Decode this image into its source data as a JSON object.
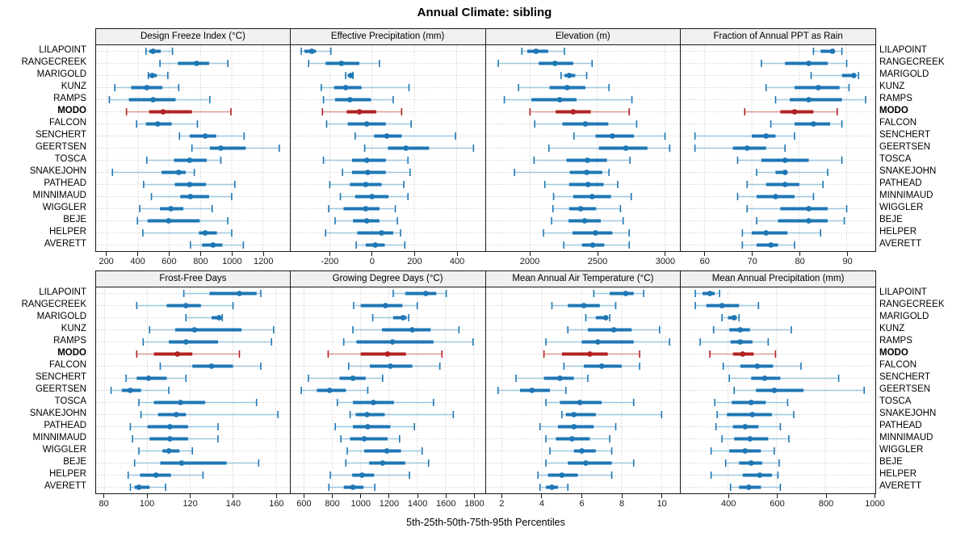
{
  "title": "Annual Climate: sibling",
  "footer": "5th-25th-50th-75th-95th Percentiles",
  "colors": {
    "blue": "#1f77b4",
    "blue_light": "#9ec7e0",
    "red": "#b22222",
    "red_light": "#dc9a90",
    "grid": "#c8c8c8",
    "border": "#1a1a1a",
    "header_bg": "#f0f0f0"
  },
  "chart_data": {
    "type": "errorbar-grid",
    "title": "Annual Climate: sibling",
    "footer_xlabel": "5th-25th-50th-75th-95th Percentiles",
    "percentiles": [
      "5th",
      "25th",
      "50th",
      "75th",
      "95th"
    ],
    "stations": [
      "LILAPOINT",
      "RANGECREEK",
      "MARIGOLD",
      "KUNZ",
      "RAMPS",
      "MODO",
      "FALCON",
      "SENCHERT",
      "GEERTSEN",
      "TOSCA",
      "SNAKEJOHN",
      "PATHEAD",
      "MINNIMAUD",
      "WIGGLER",
      "BEJE",
      "HELPER",
      "AVERETT"
    ],
    "highlight_station": "MODO",
    "panels": [
      {
        "title": "Design Freeze Index (°C)",
        "grid_row": 0,
        "grid_col": 0,
        "xlim": [
          130,
          1372
        ],
        "ticks": [
          200,
          400,
          600,
          800,
          1000,
          1200
        ],
        "values": [
          [
            450,
            470,
            495,
            545,
            620
          ],
          [
            540,
            655,
            775,
            855,
            975
          ],
          [
            465,
            470,
            490,
            520,
            590
          ],
          [
            250,
            355,
            455,
            555,
            660
          ],
          [
            215,
            340,
            495,
            640,
            860
          ],
          [
            325,
            470,
            560,
            745,
            995
          ],
          [
            390,
            450,
            525,
            615,
            780
          ],
          [
            665,
            730,
            830,
            900,
            1080
          ],
          [
            745,
            860,
            930,
            1090,
            1305
          ],
          [
            455,
            630,
            730,
            840,
            930
          ],
          [
            235,
            550,
            660,
            705,
            760
          ],
          [
            435,
            635,
            730,
            835,
            1020
          ],
          [
            485,
            670,
            735,
            855,
            1000
          ],
          [
            410,
            540,
            610,
            690,
            875
          ],
          [
            395,
            460,
            595,
            795,
            975
          ],
          [
            430,
            790,
            830,
            905,
            1000
          ],
          [
            735,
            810,
            880,
            940,
            1075
          ]
        ]
      },
      {
        "title": "Effective Precipitation (mm)",
        "grid_row": 0,
        "grid_col": 1,
        "xlim": [
          -385,
          535
        ],
        "ticks": [
          -200,
          0,
          200,
          400
        ],
        "values": [
          [
            -335,
            -320,
            -285,
            -265,
            -195
          ],
          [
            -300,
            -220,
            -145,
            -60,
            35
          ],
          [
            -125,
            -115,
            -100,
            -95,
            -90
          ],
          [
            -240,
            -180,
            -125,
            -50,
            175
          ],
          [
            -230,
            -175,
            -105,
            -5,
            100
          ],
          [
            -235,
            -120,
            -60,
            20,
            140
          ],
          [
            -215,
            -115,
            -25,
            65,
            185
          ],
          [
            -80,
            10,
            70,
            140,
            395
          ],
          [
            -35,
            75,
            160,
            270,
            480
          ],
          [
            -230,
            -95,
            -25,
            65,
            170
          ],
          [
            -140,
            -95,
            -20,
            65,
            180
          ],
          [
            -200,
            -105,
            -30,
            45,
            150
          ],
          [
            -150,
            -80,
            0,
            78,
            170
          ],
          [
            -205,
            -135,
            -30,
            35,
            110
          ],
          [
            -175,
            -90,
            -25,
            35,
            120
          ],
          [
            -220,
            -70,
            45,
            100,
            135
          ],
          [
            -75,
            -30,
            15,
            60,
            155
          ]
        ]
      },
      {
        "title": "Elevation (m)",
        "grid_row": 0,
        "grid_col": 2,
        "xlim": [
          1675,
          3115
        ],
        "ticks": [
          2000,
          2500,
          3000
        ],
        "values": [
          [
            1940,
            1980,
            2045,
            2135,
            2255
          ],
          [
            1765,
            2065,
            2185,
            2320,
            2460
          ],
          [
            2230,
            2255,
            2290,
            2335,
            2420
          ],
          [
            1915,
            2145,
            2275,
            2410,
            2585
          ],
          [
            1810,
            2010,
            2220,
            2345,
            2755
          ],
          [
            2000,
            2190,
            2320,
            2450,
            2735
          ],
          [
            2035,
            2240,
            2410,
            2580,
            2790
          ],
          [
            2325,
            2485,
            2610,
            2770,
            3000
          ],
          [
            2140,
            2510,
            2710,
            2870,
            3035
          ],
          [
            2030,
            2270,
            2425,
            2570,
            2740
          ],
          [
            1885,
            2295,
            2420,
            2535,
            2585
          ],
          [
            2110,
            2290,
            2430,
            2545,
            2650
          ],
          [
            2175,
            2320,
            2460,
            2600,
            2750
          ],
          [
            2170,
            2290,
            2375,
            2490,
            2670
          ],
          [
            2160,
            2285,
            2405,
            2525,
            2690
          ],
          [
            2100,
            2315,
            2485,
            2610,
            2735
          ],
          [
            2250,
            2385,
            2465,
            2550,
            2735
          ]
        ]
      },
      {
        "title": "Fraction of Annual PPT as Rain",
        "grid_row": 0,
        "grid_col": 3,
        "xlim": [
          55,
          96
        ],
        "ticks": [
          60,
          70,
          80,
          90
        ],
        "values": [
          [
            83,
            84.5,
            87,
            87.5,
            89
          ],
          [
            72,
            77,
            82,
            86,
            90
          ],
          [
            82.5,
            89,
            91.5,
            92,
            92.5
          ],
          [
            73,
            79,
            84,
            88.5,
            90.5
          ],
          [
            75,
            78,
            82,
            89,
            94
          ],
          [
            68.5,
            76,
            79,
            83,
            88
          ],
          [
            74,
            79,
            83,
            86.5,
            89
          ],
          [
            58,
            70,
            73,
            75,
            79
          ],
          [
            58,
            66,
            69,
            73,
            77
          ],
          [
            67,
            72,
            77,
            82,
            89
          ],
          [
            71,
            75,
            77,
            77.5,
            86
          ],
          [
            69,
            73,
            77,
            80,
            85
          ],
          [
            67,
            71,
            75,
            79,
            83
          ],
          [
            69,
            76,
            82,
            86,
            90
          ],
          [
            71,
            75.5,
            82,
            86,
            89.5
          ],
          [
            68,
            70,
            73,
            77.5,
            84.5
          ],
          [
            68,
            71,
            74,
            75.5,
            79
          ]
        ]
      },
      {
        "title": "Frost-Free Days",
        "grid_row": 1,
        "grid_col": 0,
        "xlim": [
          76,
          166.5
        ],
        "ticks": [
          80,
          100,
          120,
          140,
          160
        ],
        "values": [
          [
            117,
            129,
            143,
            151,
            153
          ],
          [
            95,
            109,
            118,
            125,
            140
          ],
          [
            118,
            130,
            133.5,
            134,
            135
          ],
          [
            101,
            113,
            122,
            144,
            159
          ],
          [
            98,
            110,
            118,
            133,
            158
          ],
          [
            95,
            103,
            114,
            121,
            143
          ],
          [
            106,
            121,
            130,
            140,
            153
          ],
          [
            90,
            95,
            100.5,
            109,
            118
          ],
          [
            83,
            88,
            92,
            97,
            110
          ],
          [
            96,
            103,
            115.5,
            127,
            151
          ],
          [
            97,
            105,
            113.5,
            118,
            161
          ],
          [
            92,
            100,
            110.5,
            119,
            133
          ],
          [
            93,
            101,
            110.5,
            119,
            133
          ],
          [
            96,
            107,
            110,
            115,
            121
          ],
          [
            94,
            106,
            116,
            137,
            152
          ],
          [
            91,
            96.5,
            104,
            111,
            126
          ],
          [
            92,
            94,
            96,
            101,
            108.5
          ]
        ]
      },
      {
        "title": "Growing Degree Days (°C)",
        "grid_row": 1,
        "grid_col": 1,
        "xlim": [
          505,
          1880
        ],
        "ticks": [
          600,
          800,
          1000,
          1200,
          1400,
          1600,
          1800
        ],
        "values": [
          [
            1230,
            1315,
            1460,
            1535,
            1605
          ],
          [
            950,
            1000,
            1175,
            1295,
            1400
          ],
          [
            1085,
            1230,
            1300,
            1325,
            1340
          ],
          [
            945,
            1150,
            1365,
            1495,
            1695
          ],
          [
            880,
            970,
            1225,
            1515,
            1795
          ],
          [
            770,
            1000,
            1190,
            1320,
            1575
          ],
          [
            915,
            1065,
            1210,
            1365,
            1560
          ],
          [
            630,
            850,
            945,
            1035,
            1155
          ],
          [
            580,
            690,
            780,
            895,
            1050
          ],
          [
            835,
            945,
            1090,
            1235,
            1515
          ],
          [
            925,
            965,
            1045,
            1170,
            1655
          ],
          [
            820,
            945,
            1050,
            1210,
            1380
          ],
          [
            860,
            925,
            1025,
            1190,
            1275
          ],
          [
            905,
            1025,
            1185,
            1285,
            1435
          ],
          [
            895,
            1060,
            1155,
            1315,
            1480
          ],
          [
            785,
            940,
            1010,
            1095,
            1345
          ],
          [
            775,
            880,
            945,
            1020,
            1100
          ]
        ]
      },
      {
        "title": "Mean Annual Air Temperature (°C)",
        "grid_row": 1,
        "grid_col": 2,
        "xlim": [
          1.2,
          10.95
        ],
        "ticks": [
          2,
          4,
          6,
          8,
          10
        ],
        "values": [
          [
            6.6,
            7.4,
            8.2,
            8.6,
            9.1
          ],
          [
            4.5,
            5.3,
            6.1,
            6.9,
            7.7
          ],
          [
            6.2,
            6.7,
            7.2,
            7.3,
            7.4
          ],
          [
            5.3,
            6.3,
            7.6,
            8.5,
            9.9
          ],
          [
            4.2,
            6.0,
            6.8,
            8.6,
            10.4
          ],
          [
            4.1,
            5.0,
            6.4,
            7.3,
            8.9
          ],
          [
            5.1,
            6.1,
            7.0,
            8.0,
            8.9
          ],
          [
            2.7,
            4.1,
            4.9,
            5.6,
            6.3
          ],
          [
            1.8,
            2.9,
            3.5,
            4.4,
            5.2
          ],
          [
            4.2,
            4.9,
            5.9,
            7.0,
            8.6
          ],
          [
            5.0,
            5.2,
            5.6,
            6.7,
            10.0
          ],
          [
            3.9,
            4.8,
            5.6,
            6.6,
            7.7
          ],
          [
            4.2,
            4.7,
            5.5,
            6.4,
            7.4
          ],
          [
            4.4,
            5.6,
            6.0,
            6.7,
            7.5
          ],
          [
            4.2,
            5.3,
            6.2,
            7.5,
            8.6
          ],
          [
            3.8,
            4.3,
            5.0,
            5.8,
            7.5
          ],
          [
            3.9,
            4.2,
            4.5,
            4.8,
            5.3
          ]
        ]
      },
      {
        "title": "Mean Annual Precipitation (mm)",
        "grid_row": 1,
        "grid_col": 3,
        "xlim": [
          205,
          1005
        ],
        "ticks": [
          400,
          600,
          800,
          1000
        ],
        "values": [
          [
            265,
            295,
            325,
            345,
            365
          ],
          [
            265,
            310,
            375,
            445,
            525
          ],
          [
            375,
            400,
            425,
            435,
            445
          ],
          [
            340,
            405,
            450,
            490,
            660
          ],
          [
            285,
            410,
            450,
            500,
            565
          ],
          [
            325,
            420,
            460,
            505,
            595
          ],
          [
            380,
            450,
            520,
            585,
            700
          ],
          [
            405,
            495,
            550,
            615,
            855
          ],
          [
            425,
            515,
            590,
            710,
            960
          ],
          [
            345,
            415,
            495,
            555,
            645
          ],
          [
            355,
            395,
            500,
            580,
            670
          ],
          [
            350,
            420,
            470,
            525,
            615
          ],
          [
            375,
            425,
            490,
            565,
            650
          ],
          [
            330,
            405,
            470,
            535,
            590
          ],
          [
            390,
            445,
            495,
            540,
            610
          ],
          [
            330,
            460,
            530,
            580,
            605
          ],
          [
            410,
            445,
            485,
            535,
            615
          ]
        ]
      }
    ]
  }
}
